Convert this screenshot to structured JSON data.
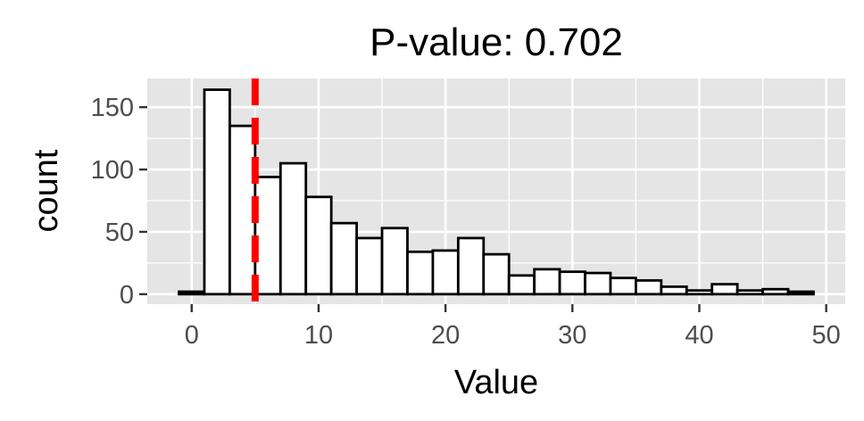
{
  "chart_data": {
    "type": "bar",
    "title": "P-value: 0.702",
    "xlabel": "Value",
    "ylabel": "count",
    "xlim": [
      -3.5,
      51.5
    ],
    "ylim": [
      -8,
      173
    ],
    "x_ticks": [
      0,
      10,
      20,
      30,
      40,
      50
    ],
    "y_ticks": [
      0,
      50,
      100,
      150
    ],
    "grid": true,
    "bin_width": 2,
    "bins": [
      {
        "x0": -1,
        "x1": 1,
        "count": 2
      },
      {
        "x0": 1,
        "x1": 3,
        "count": 164
      },
      {
        "x0": 3,
        "x1": 5,
        "count": 135
      },
      {
        "x0": 5,
        "x1": 7,
        "count": 94
      },
      {
        "x0": 7,
        "x1": 9,
        "count": 105
      },
      {
        "x0": 9,
        "x1": 11,
        "count": 78
      },
      {
        "x0": 11,
        "x1": 13,
        "count": 57
      },
      {
        "x0": 13,
        "x1": 15,
        "count": 45
      },
      {
        "x0": 15,
        "x1": 17,
        "count": 53
      },
      {
        "x0": 17,
        "x1": 19,
        "count": 34
      },
      {
        "x0": 19,
        "x1": 21,
        "count": 35
      },
      {
        "x0": 21,
        "x1": 23,
        "count": 45
      },
      {
        "x0": 23,
        "x1": 25,
        "count": 32
      },
      {
        "x0": 25,
        "x1": 27,
        "count": 15
      },
      {
        "x0": 27,
        "x1": 29,
        "count": 20
      },
      {
        "x0": 29,
        "x1": 31,
        "count": 18
      },
      {
        "x0": 31,
        "x1": 33,
        "count": 17
      },
      {
        "x0": 33,
        "x1": 35,
        "count": 13
      },
      {
        "x0": 35,
        "x1": 37,
        "count": 11
      },
      {
        "x0": 37,
        "x1": 39,
        "count": 6
      },
      {
        "x0": 39,
        "x1": 41,
        "count": 3
      },
      {
        "x0": 41,
        "x1": 43,
        "count": 8
      },
      {
        "x0": 43,
        "x1": 45,
        "count": 3
      },
      {
        "x0": 45,
        "x1": 47,
        "count": 4
      },
      {
        "x0": 47,
        "x1": 49,
        "count": 2
      }
    ],
    "reference_line": {
      "x": 5,
      "orientation": "vertical",
      "style": "dashed",
      "color": "#ff0000"
    },
    "colors": {
      "panel_background": "#e5e5e5",
      "gridline": "#ffffff",
      "bar_fill": "#ffffff",
      "bar_outline": "#000000",
      "tick_label": "#4d4d4d"
    }
  }
}
